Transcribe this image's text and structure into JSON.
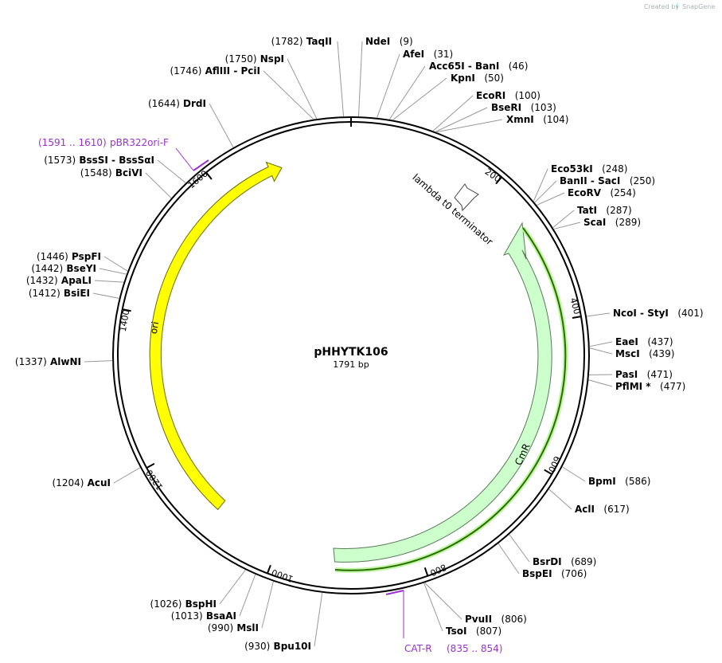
{
  "credit": {
    "text": "Created by",
    "brand": "SnapGene"
  },
  "plasmid": {
    "name": "pHHYTK106",
    "length": "1791 bp"
  },
  "ticks": [
    "200",
    "400",
    "600",
    "800",
    "1000",
    "1200",
    "1400",
    "1600"
  ],
  "colors": {
    "ori": "#ffff00",
    "cmr": "#ccffcc",
    "orf": "#2a6d00",
    "primer": "#9b30d0",
    "backbone": "#000000"
  },
  "features": [
    {
      "label": "ori",
      "type": "arrow",
      "color": "#ffff00"
    },
    {
      "label": "CmR",
      "type": "arrow",
      "color": "#ccffcc"
    },
    {
      "label": "lambda t0 terminator",
      "type": "terminator",
      "color": "#ffffff"
    }
  ],
  "primers": [
    {
      "name": "pBR322ori-F",
      "range": "(1591 .. 1610)"
    },
    {
      "name": "CAT-R",
      "range": "(835 .. 854)"
    }
  ],
  "sites": [
    {
      "id": "taqii",
      "parts": [
        [
          "pos",
          "(1782)"
        ],
        [
          "enz",
          "TaqII"
        ]
      ]
    },
    {
      "id": "ndei",
      "parts": [
        [
          "enz",
          "NdeI"
        ],
        [
          "pos",
          "(9)"
        ]
      ]
    },
    {
      "id": "afei",
      "parts": [
        [
          "enz",
          "AfeI"
        ],
        [
          "pos",
          "(31)"
        ]
      ]
    },
    {
      "id": "acc65i",
      "parts": [
        [
          "enz",
          "Acc65I"
        ],
        [
          "sep",
          "-"
        ],
        [
          "enz",
          "BanI"
        ],
        [
          "pos",
          "(46)"
        ]
      ]
    },
    {
      "id": "kpni",
      "parts": [
        [
          "enz",
          "KpnI"
        ],
        [
          "pos",
          "(50)"
        ]
      ]
    },
    {
      "id": "ecori",
      "parts": [
        [
          "enz",
          "EcoRI"
        ],
        [
          "pos",
          "(100)"
        ]
      ]
    },
    {
      "id": "bseri",
      "parts": [
        [
          "enz",
          "BseRI"
        ],
        [
          "pos",
          "(103)"
        ]
      ]
    },
    {
      "id": "xmni",
      "parts": [
        [
          "enz",
          "XmnI"
        ],
        [
          "pos",
          "(104)"
        ]
      ]
    },
    {
      "id": "eco53ki",
      "parts": [
        [
          "enz",
          "Eco53kI"
        ],
        [
          "pos",
          "(248)"
        ]
      ]
    },
    {
      "id": "banii",
      "parts": [
        [
          "enz",
          "BanII"
        ],
        [
          "sep",
          "-"
        ],
        [
          "enz",
          "SacI"
        ],
        [
          "pos",
          "(250)"
        ]
      ]
    },
    {
      "id": "ecorv",
      "parts": [
        [
          "enz",
          "EcoRV"
        ],
        [
          "pos",
          "(254)"
        ]
      ]
    },
    {
      "id": "tati",
      "parts": [
        [
          "enz",
          "TatI"
        ],
        [
          "pos",
          "(287)"
        ]
      ]
    },
    {
      "id": "scai",
      "parts": [
        [
          "enz",
          "ScaI"
        ],
        [
          "pos",
          "(289)"
        ]
      ]
    },
    {
      "id": "ncoi",
      "parts": [
        [
          "enz",
          "NcoI"
        ],
        [
          "sep",
          "-"
        ],
        [
          "enz",
          "StyI"
        ],
        [
          "pos",
          "(401)"
        ]
      ]
    },
    {
      "id": "eaei",
      "parts": [
        [
          "enz",
          "EaeI"
        ],
        [
          "pos",
          "(437)"
        ]
      ]
    },
    {
      "id": "msci",
      "parts": [
        [
          "enz",
          "MscI"
        ],
        [
          "pos",
          "(439)"
        ]
      ]
    },
    {
      "id": "pasi",
      "parts": [
        [
          "enz",
          "PasI"
        ],
        [
          "pos",
          "(471)"
        ]
      ]
    },
    {
      "id": "pflmi",
      "parts": [
        [
          "enz",
          "PflMI *"
        ],
        [
          "pos",
          "(477)"
        ]
      ]
    },
    {
      "id": "bpmi",
      "parts": [
        [
          "enz",
          "BpmI"
        ],
        [
          "pos",
          "(586)"
        ]
      ]
    },
    {
      "id": "acli",
      "parts": [
        [
          "enz",
          "AclI"
        ],
        [
          "pos",
          "(617)"
        ]
      ]
    },
    {
      "id": "bsrdi",
      "parts": [
        [
          "enz",
          "BsrDI"
        ],
        [
          "pos",
          "(689)"
        ]
      ]
    },
    {
      "id": "bspei",
      "parts": [
        [
          "enz",
          "BspEI"
        ],
        [
          "pos",
          "(706)"
        ]
      ]
    },
    {
      "id": "pvuii",
      "parts": [
        [
          "enz",
          "PvuII"
        ],
        [
          "pos",
          "(806)"
        ]
      ]
    },
    {
      "id": "tsoi",
      "parts": [
        [
          "enz",
          "TsoI"
        ],
        [
          "pos",
          "(807)"
        ]
      ]
    },
    {
      "id": "bpu10i",
      "parts": [
        [
          "pos",
          "(930)"
        ],
        [
          "enz",
          "Bpu10I"
        ]
      ]
    },
    {
      "id": "msli",
      "parts": [
        [
          "pos",
          "(990)"
        ],
        [
          "enz",
          "MslI"
        ]
      ]
    },
    {
      "id": "bsaai",
      "parts": [
        [
          "pos",
          "(1013)"
        ],
        [
          "enz",
          "BsaAI"
        ]
      ]
    },
    {
      "id": "bsphi",
      "parts": [
        [
          "pos",
          "(1026)"
        ],
        [
          "enz",
          "BspHI"
        ]
      ]
    },
    {
      "id": "acui",
      "parts": [
        [
          "pos",
          "(1204)"
        ],
        [
          "enz",
          "AcuI"
        ]
      ]
    },
    {
      "id": "alwni",
      "parts": [
        [
          "pos",
          "(1337)"
        ],
        [
          "enz",
          "AlwNI"
        ]
      ]
    },
    {
      "id": "bsiei",
      "parts": [
        [
          "pos",
          "(1412)"
        ],
        [
          "enz",
          "BsiEI"
        ]
      ]
    },
    {
      "id": "apali",
      "parts": [
        [
          "pos",
          "(1432)"
        ],
        [
          "enz",
          "ApaLI"
        ]
      ]
    },
    {
      "id": "bseyi",
      "parts": [
        [
          "pos",
          "(1442)"
        ],
        [
          "enz",
          "BseYI"
        ]
      ]
    },
    {
      "id": "pspfi",
      "parts": [
        [
          "pos",
          "(1446)"
        ],
        [
          "enz",
          "PspFI"
        ]
      ]
    },
    {
      "id": "bcivi",
      "parts": [
        [
          "pos",
          "(1548)"
        ],
        [
          "enz",
          "BciVI"
        ]
      ]
    },
    {
      "id": "bsssi",
      "parts": [
        [
          "pos",
          "(1573)"
        ],
        [
          "enz",
          "BssSI"
        ],
        [
          "sep",
          "-"
        ],
        [
          "enz",
          "BssSαI"
        ]
      ]
    },
    {
      "id": "drdi",
      "parts": [
        [
          "pos",
          "(1644)"
        ],
        [
          "enz",
          "DrdI"
        ]
      ]
    },
    {
      "id": "afliii",
      "parts": [
        [
          "pos",
          "(1746)"
        ],
        [
          "enz",
          "AflIII"
        ],
        [
          "sep",
          "-"
        ],
        [
          "enz",
          "PciI"
        ]
      ]
    },
    {
      "id": "nspi",
      "parts": [
        [
          "pos",
          "(1750)"
        ],
        [
          "enz",
          "NspI"
        ]
      ]
    }
  ]
}
